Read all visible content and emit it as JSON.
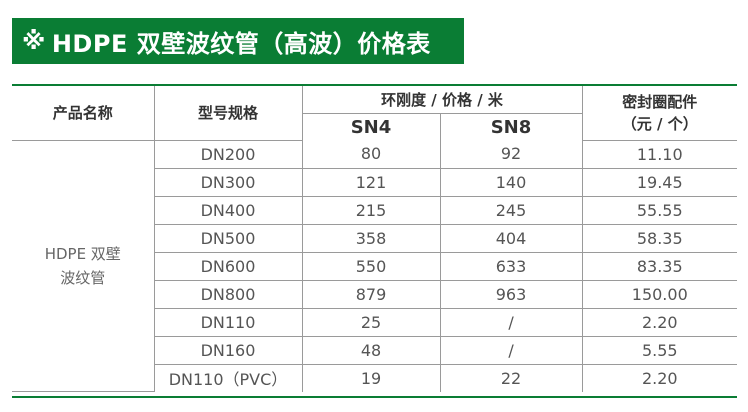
{
  "title": {
    "mark": "※",
    "text": "HDPE 双壁波纹管（高波）价格表"
  },
  "colors": {
    "accent": "#0a7d34",
    "border": "#9a9a9a",
    "text": "#555555"
  },
  "table": {
    "headers": {
      "product_name": "产品名称",
      "model_spec": "型号规格",
      "stiffness_group": "环刚度 / 价格 / 米",
      "sn4": "SN4",
      "sn8": "SN8",
      "seal_line1": "密封圈配件",
      "seal_line2": "（元 / 个）"
    },
    "product": {
      "line1": "HDPE 双壁",
      "line2": "波纹管"
    },
    "rows": [
      {
        "model": "DN200",
        "sn4": "80",
        "sn8": "92",
        "seal": "11.10"
      },
      {
        "model": "DN300",
        "sn4": "121",
        "sn8": "140",
        "seal": "19.45"
      },
      {
        "model": "DN400",
        "sn4": "215",
        "sn8": "245",
        "seal": "55.55"
      },
      {
        "model": "DN500",
        "sn4": "358",
        "sn8": "404",
        "seal": "58.35"
      },
      {
        "model": "DN600",
        "sn4": "550",
        "sn8": "633",
        "seal": "83.35"
      },
      {
        "model": "DN800",
        "sn4": "879",
        "sn8": "963",
        "seal": "150.00"
      },
      {
        "model": "DN110",
        "sn4": "25",
        "sn8": "/",
        "seal": "2.20"
      },
      {
        "model": "DN160",
        "sn4": "48",
        "sn8": "/",
        "seal": "5.55"
      },
      {
        "model": "DN110（PVC）",
        "sn4": "19",
        "sn8": "22",
        "seal": "2.20"
      }
    ]
  }
}
